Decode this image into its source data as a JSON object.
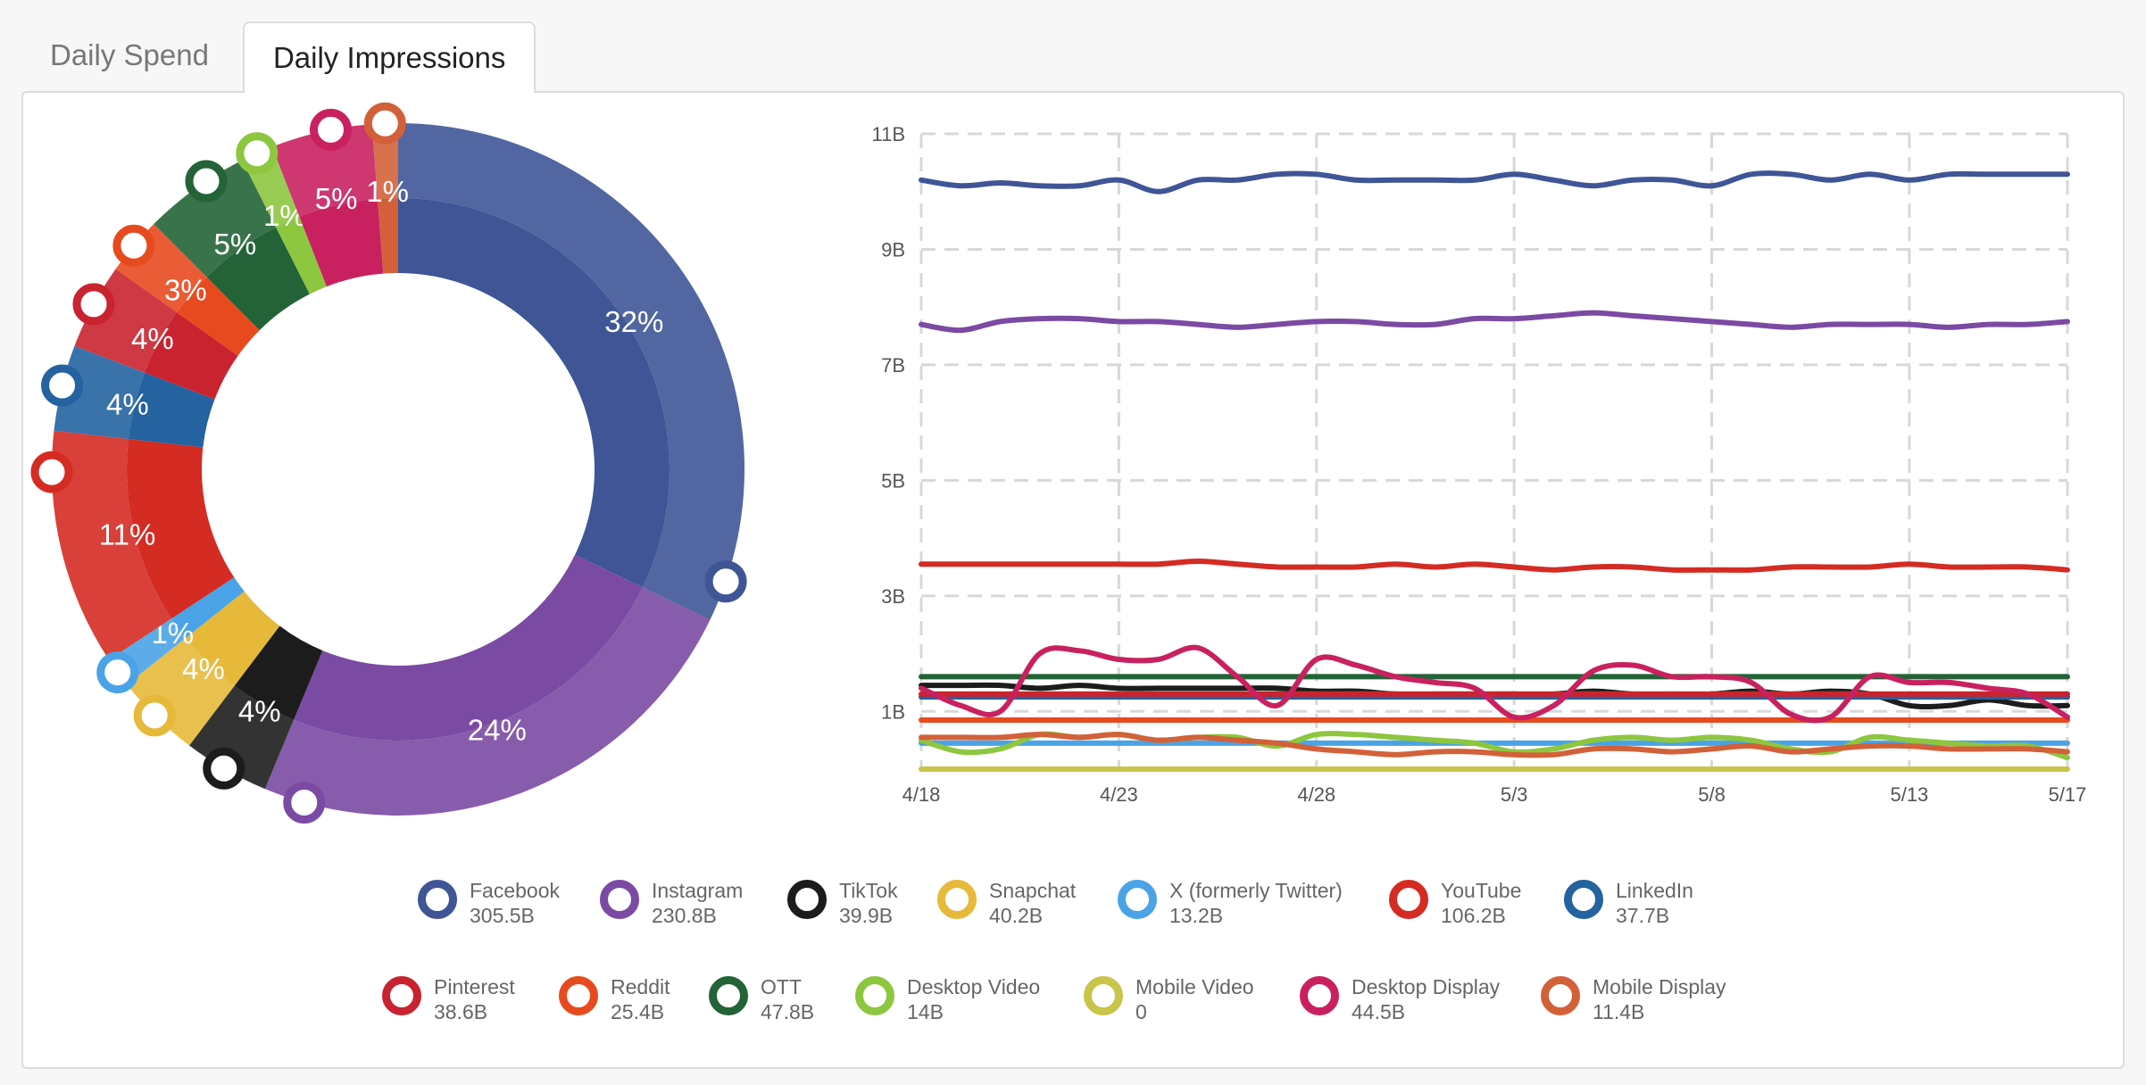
{
  "tabs": [
    {
      "label": "Daily Spend",
      "active": false
    },
    {
      "label": "Daily Impressions",
      "active": true
    }
  ],
  "chart_data": [
    {
      "type": "pie",
      "variant": "donut",
      "slices": [
        {
          "name": "Facebook",
          "label": "32%",
          "percent": 32,
          "color": "#3f5596"
        },
        {
          "name": "Instagram",
          "label": "24%",
          "percent": 24,
          "color": "#7b4aa3"
        },
        {
          "name": "TikTok",
          "label": "4%",
          "percent": 4,
          "color": "#1c1c1c"
        },
        {
          "name": "Snapchat",
          "label": "4%",
          "percent": 4,
          "color": "#e6b93a"
        },
        {
          "name": "X (formerly Twitter)",
          "label": "1%",
          "percent": 1.4,
          "color": "#4aa3e6"
        },
        {
          "name": "YouTube",
          "label": "11%",
          "percent": 11,
          "color": "#d42b23"
        },
        {
          "name": "LinkedIn",
          "label": "4%",
          "percent": 4,
          "color": "#2462a0"
        },
        {
          "name": "Pinterest",
          "label": "4%",
          "percent": 4,
          "color": "#c9232f"
        },
        {
          "name": "Reddit",
          "label": "3%",
          "percent": 2.7,
          "color": "#e84a1f"
        },
        {
          "name": "OTT",
          "label": "5%",
          "percent": 5,
          "color": "#236337"
        },
        {
          "name": "Desktop Video",
          "label": "1%",
          "percent": 1.5,
          "color": "#8dc63f"
        },
        {
          "name": "Mobile Video",
          "label": "",
          "percent": 0,
          "color": "#c9c44a"
        },
        {
          "name": "Desktop Display",
          "label": "5%",
          "percent": 4.7,
          "color": "#c9215f"
        },
        {
          "name": "Mobile Display",
          "label": "1%",
          "percent": 1.2,
          "color": "#d2613a"
        }
      ]
    },
    {
      "type": "line",
      "x": [
        "4/18",
        "4/19",
        "4/20",
        "4/21",
        "4/22",
        "4/23",
        "4/24",
        "4/25",
        "4/26",
        "4/27",
        "4/28",
        "4/29",
        "4/30",
        "5/1",
        "5/2",
        "5/3",
        "5/4",
        "5/5",
        "5/6",
        "5/7",
        "5/8",
        "5/9",
        "5/10",
        "5/11",
        "5/12",
        "5/13",
        "5/14",
        "5/15",
        "5/16",
        "5/17"
      ],
      "x_tick_labels": [
        "4/18",
        "4/23",
        "4/28",
        "5/3",
        "5/8",
        "5/13",
        "5/17"
      ],
      "y_tick_labels": [
        "1B",
        "3B",
        "5B",
        "7B",
        "9B",
        "11B"
      ],
      "ylim": [
        0,
        11
      ],
      "grid": true,
      "series": [
        {
          "name": "Facebook",
          "color": "#3f5596",
          "values": [
            10.2,
            10.1,
            10.15,
            10.1,
            10.1,
            10.2,
            10.0,
            10.2,
            10.2,
            10.3,
            10.3,
            10.2,
            10.2,
            10.2,
            10.2,
            10.3,
            10.2,
            10.1,
            10.2,
            10.2,
            10.1,
            10.3,
            10.3,
            10.2,
            10.3,
            10.2,
            10.3,
            10.3,
            10.3,
            10.3
          ]
        },
        {
          "name": "Instagram",
          "color": "#7b4aa3",
          "values": [
            7.7,
            7.6,
            7.75,
            7.8,
            7.8,
            7.75,
            7.75,
            7.7,
            7.65,
            7.7,
            7.75,
            7.75,
            7.7,
            7.7,
            7.8,
            7.8,
            7.85,
            7.9,
            7.85,
            7.8,
            7.75,
            7.7,
            7.65,
            7.7,
            7.7,
            7.7,
            7.65,
            7.7,
            7.7,
            7.75
          ]
        },
        {
          "name": "TikTok",
          "color": "#1c1c1c",
          "values": [
            1.45,
            1.45,
            1.45,
            1.4,
            1.45,
            1.4,
            1.4,
            1.4,
            1.4,
            1.4,
            1.35,
            1.35,
            1.3,
            1.3,
            1.3,
            1.3,
            1.3,
            1.35,
            1.3,
            1.3,
            1.3,
            1.35,
            1.3,
            1.35,
            1.3,
            1.1,
            1.1,
            1.2,
            1.1,
            1.1
          ]
        },
        {
          "name": "Snapchat",
          "color": "#e6b93a",
          "values": [
            1.3,
            1.3,
            1.3,
            1.3,
            1.3,
            1.3,
            1.3,
            1.3,
            1.3,
            1.3,
            1.3,
            1.3,
            1.3,
            1.3,
            1.3,
            1.3,
            1.3,
            1.3,
            1.3,
            1.3,
            1.3,
            1.3,
            1.3,
            1.3,
            1.3,
            1.3,
            1.3,
            1.3,
            1.3,
            1.3
          ]
        },
        {
          "name": "X (formerly Twitter)",
          "color": "#4aa3e6",
          "values": [
            0.45,
            0.45,
            0.45,
            0.45,
            0.45,
            0.45,
            0.45,
            0.45,
            0.45,
            0.45,
            0.45,
            0.45,
            0.45,
            0.45,
            0.45,
            0.45,
            0.45,
            0.45,
            0.45,
            0.45,
            0.45,
            0.45,
            0.45,
            0.45,
            0.45,
            0.45,
            0.45,
            0.45,
            0.45,
            0.45
          ]
        },
        {
          "name": "YouTube",
          "color": "#d42b23",
          "values": [
            3.55,
            3.55,
            3.55,
            3.55,
            3.55,
            3.55,
            3.55,
            3.6,
            3.55,
            3.5,
            3.5,
            3.5,
            3.55,
            3.5,
            3.55,
            3.5,
            3.45,
            3.5,
            3.5,
            3.45,
            3.45,
            3.45,
            3.5,
            3.5,
            3.5,
            3.55,
            3.5,
            3.5,
            3.5,
            3.45
          ]
        },
        {
          "name": "LinkedIn",
          "color": "#2462a0",
          "values": [
            1.25,
            1.25,
            1.25,
            1.25,
            1.25,
            1.25,
            1.25,
            1.25,
            1.25,
            1.25,
            1.25,
            1.25,
            1.25,
            1.25,
            1.25,
            1.25,
            1.25,
            1.25,
            1.25,
            1.25,
            1.25,
            1.25,
            1.25,
            1.25,
            1.25,
            1.25,
            1.25,
            1.25,
            1.25,
            1.25
          ]
        },
        {
          "name": "Pinterest",
          "color": "#c9232f",
          "values": [
            1.3,
            1.3,
            1.3,
            1.3,
            1.3,
            1.3,
            1.3,
            1.3,
            1.3,
            1.3,
            1.3,
            1.3,
            1.3,
            1.3,
            1.3,
            1.3,
            1.3,
            1.3,
            1.3,
            1.3,
            1.3,
            1.3,
            1.3,
            1.3,
            1.3,
            1.3,
            1.3,
            1.3,
            1.3,
            1.3
          ]
        },
        {
          "name": "Reddit",
          "color": "#e84a1f",
          "values": [
            0.85,
            0.85,
            0.85,
            0.85,
            0.85,
            0.85,
            0.85,
            0.85,
            0.85,
            0.85,
            0.85,
            0.85,
            0.85,
            0.85,
            0.85,
            0.85,
            0.85,
            0.85,
            0.85,
            0.85,
            0.85,
            0.85,
            0.85,
            0.85,
            0.85,
            0.85,
            0.85,
            0.85,
            0.85,
            0.85
          ]
        },
        {
          "name": "OTT",
          "color": "#236337",
          "values": [
            1.6,
            1.6,
            1.6,
            1.6,
            1.6,
            1.6,
            1.6,
            1.6,
            1.6,
            1.6,
            1.6,
            1.6,
            1.6,
            1.6,
            1.6,
            1.6,
            1.6,
            1.6,
            1.6,
            1.6,
            1.6,
            1.6,
            1.6,
            1.6,
            1.6,
            1.6,
            1.6,
            1.6,
            1.6,
            1.6
          ]
        },
        {
          "name": "Desktop Video",
          "color": "#8dc63f",
          "values": [
            0.5,
            0.3,
            0.35,
            0.6,
            0.55,
            0.6,
            0.5,
            0.55,
            0.55,
            0.4,
            0.6,
            0.6,
            0.55,
            0.5,
            0.45,
            0.3,
            0.35,
            0.5,
            0.55,
            0.5,
            0.55,
            0.5,
            0.35,
            0.3,
            0.55,
            0.5,
            0.45,
            0.4,
            0.4,
            0.2
          ]
        },
        {
          "name": "Mobile Video",
          "color": "#c9c44a",
          "values": [
            0,
            0,
            0,
            0,
            0,
            0,
            0,
            0,
            0,
            0,
            0,
            0,
            0,
            0,
            0,
            0,
            0,
            0,
            0,
            0,
            0,
            0,
            0,
            0,
            0,
            0,
            0,
            0,
            0,
            0
          ]
        },
        {
          "name": "Desktop Display",
          "color": "#c9215f",
          "values": [
            1.4,
            1.1,
            1.0,
            2.0,
            2.05,
            1.9,
            1.9,
            2.1,
            1.6,
            1.1,
            1.9,
            1.8,
            1.6,
            1.5,
            1.4,
            0.9,
            1.1,
            1.7,
            1.8,
            1.6,
            1.6,
            1.5,
            0.95,
            0.9,
            1.6,
            1.5,
            1.5,
            1.4,
            1.3,
            0.9
          ]
        },
        {
          "name": "Mobile Display",
          "color": "#d2613a",
          "values": [
            0.55,
            0.55,
            0.55,
            0.6,
            0.55,
            0.6,
            0.5,
            0.55,
            0.5,
            0.45,
            0.35,
            0.3,
            0.25,
            0.3,
            0.3,
            0.25,
            0.25,
            0.35,
            0.35,
            0.3,
            0.35,
            0.4,
            0.3,
            0.35,
            0.4,
            0.4,
            0.35,
            0.35,
            0.35,
            0.3
          ]
        }
      ]
    }
  ],
  "legend": [
    {
      "name": "Facebook",
      "value": "305.5B",
      "color": "#3f5596"
    },
    {
      "name": "Instagram",
      "value": "230.8B",
      "color": "#7b4aa3"
    },
    {
      "name": "TikTok",
      "value": "39.9B",
      "color": "#1c1c1c"
    },
    {
      "name": "Snapchat",
      "value": "40.2B",
      "color": "#e6b93a"
    },
    {
      "name": "X (formerly Twitter)",
      "value": "13.2B",
      "color": "#4aa3e6"
    },
    {
      "name": "YouTube",
      "value": "106.2B",
      "color": "#d42b23"
    },
    {
      "name": "LinkedIn",
      "value": "37.7B",
      "color": "#2462a0"
    },
    {
      "name": "Pinterest",
      "value": "38.6B",
      "color": "#c9232f"
    },
    {
      "name": "Reddit",
      "value": "25.4B",
      "color": "#e84a1f"
    },
    {
      "name": "OTT",
      "value": "47.8B",
      "color": "#236337"
    },
    {
      "name": "Desktop Video",
      "value": "14B",
      "color": "#8dc63f"
    },
    {
      "name": "Mobile Video",
      "value": "0",
      "color": "#c9c44a"
    },
    {
      "name": "Desktop Display",
      "value": "44.5B",
      "color": "#c9215f"
    },
    {
      "name": "Mobile Display",
      "value": "11.4B",
      "color": "#d2613a"
    }
  ]
}
